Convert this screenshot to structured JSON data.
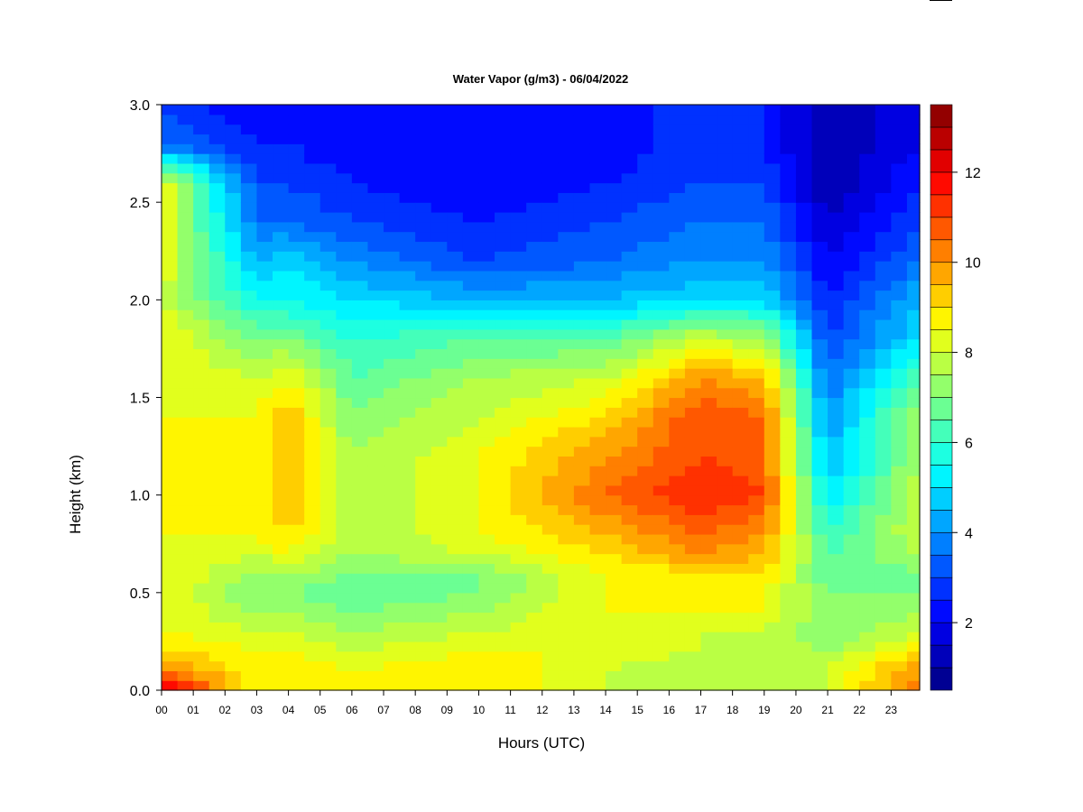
{
  "chart_data": {
    "type": "heatmap",
    "title": "Water Vapor (g/m3) - 06/04/2022",
    "xlabel": "Hours (UTC)",
    "ylabel": "Height (km)",
    "x_ticks": [
      "00",
      "01",
      "02",
      "03",
      "04",
      "05",
      "06",
      "07",
      "08",
      "09",
      "10",
      "11",
      "12",
      "13",
      "14",
      "15",
      "16",
      "17",
      "18",
      "19",
      "20",
      "21",
      "22",
      "23"
    ],
    "y_ticks": [
      "0.0",
      "0.5",
      "1.0",
      "1.5",
      "2.0",
      "2.5",
      "3.0"
    ],
    "xlim": [
      0,
      23.9
    ],
    "ylim": [
      0.0,
      3.0
    ],
    "colorbar": {
      "vmin": 0.5,
      "vmax": 13.5,
      "levels": 26,
      "ticks": [
        "2",
        "4",
        "6",
        "8",
        "10",
        "12"
      ],
      "tick_values": [
        2,
        4,
        6,
        8,
        10,
        12
      ],
      "colormap": [
        "#00007f",
        "#0000ff",
        "#007fff",
        "#00ffff",
        "#7fff7f",
        "#ffff00",
        "#ff7f00",
        "#ff0000",
        "#7f0000"
      ]
    },
    "heights_km": [
      0.0,
      0.1,
      0.2,
      0.3,
      0.4,
      0.5,
      0.6,
      0.7,
      0.8,
      0.9,
      1.0,
      1.2,
      1.4,
      1.6,
      1.8,
      2.0,
      2.2,
      2.4,
      2.6,
      2.8,
      3.0
    ],
    "hours": [
      0.0,
      0.5,
      1,
      1.5,
      2,
      2.5,
      3,
      3.5,
      4,
      4.5,
      5,
      5.5,
      6,
      6.5,
      7,
      7.5,
      8,
      8.5,
      9,
      9.5,
      10,
      10.5,
      11,
      11.5,
      12,
      12.5,
      13,
      13.5,
      14,
      14.5,
      15,
      15.5,
      16,
      16.5,
      17,
      17.5,
      18,
      18.5,
      19,
      19.5,
      20,
      20.5,
      21,
      21.5,
      22,
      22.5,
      23,
      23.5,
      23.9
    ],
    "profiles_g_m3": {
      "0.0": [
        12.5,
        10.5,
        9.0,
        8.5,
        8.5,
        8.5,
        8.5,
        8.5,
        8.5,
        8.5,
        8.5,
        8.5,
        8.5,
        8.5,
        8.5,
        8.0,
        8.5,
        8.5,
        8.5,
        3.5,
        3.0
      ],
      "3": [
        8.5,
        8.5,
        8.5,
        8.0,
        7.5,
        7.0,
        7.5,
        8.0,
        8.5,
        8.5,
        8.5,
        8.5,
        8.5,
        8.0,
        7.0,
        5.5,
        4.5,
        3.5,
        3.0,
        2.5,
        2.0
      ],
      "4": [
        9.0,
        9.0,
        8.5,
        8.0,
        7.5,
        7.0,
        7.5,
        8.5,
        9.0,
        9.5,
        9.5,
        9.5,
        9.5,
        8.5,
        7.0,
        5.5,
        5.0,
        3.5,
        3.0,
        2.5,
        2.0
      ],
      "6": [
        8.5,
        8.5,
        8.0,
        7.5,
        7.0,
        6.5,
        7.0,
        7.5,
        7.5,
        7.5,
        7.5,
        7.5,
        7.0,
        6.5,
        6.0,
        5.0,
        4.0,
        3.0,
        2.5,
        2.0,
        2.0
      ],
      "10": [
        9.0,
        9.0,
        8.5,
        8.0,
        7.5,
        7.0,
        7.0,
        8.0,
        8.5,
        8.5,
        8.5,
        8.5,
        8.0,
        7.5,
        6.5,
        4.5,
        3.0,
        2.5,
        2.0,
        2.0,
        2.0
      ],
      "14": [
        8.0,
        8.0,
        8.5,
        8.5,
        8.5,
        8.5,
        8.5,
        9.0,
        9.5,
        10.0,
        10.5,
        10.0,
        9.0,
        8.0,
        6.5,
        4.5,
        3.5,
        3.0,
        2.5,
        2.0,
        2.0
      ],
      "17": [
        7.5,
        7.5,
        8.0,
        8.0,
        8.5,
        8.5,
        9.0,
        10.0,
        10.5,
        11.0,
        11.5,
        11.0,
        11.0,
        10.0,
        8.0,
        5.0,
        4.0,
        3.5,
        3.0,
        3.0,
        3.0
      ],
      "19": [
        7.5,
        7.5,
        8.0,
        8.0,
        8.5,
        8.5,
        9.0,
        9.5,
        10.0,
        10.5,
        11.0,
        10.5,
        10.5,
        9.5,
        7.5,
        5.0,
        4.0,
        3.5,
        3.0,
        2.5,
        2.5
      ],
      "21": [
        8.0,
        8.0,
        7.5,
        7.0,
        7.0,
        7.0,
        6.5,
        6.5,
        6.0,
        5.5,
        5.0,
        4.5,
        4.0,
        3.5,
        3.0,
        2.5,
        2.0,
        1.5,
        1.0,
        1.0,
        1.0
      ],
      "23.9": [
        10.5,
        10.0,
        9.0,
        8.0,
        7.5,
        7.0,
        7.0,
        7.5,
        8.0,
        8.0,
        8.0,
        7.5,
        7.5,
        6.5,
        5.0,
        4.5,
        3.5,
        3.0,
        2.5,
        2.0,
        2.0
      ]
    },
    "grid": false,
    "legend": "colorbar-right"
  }
}
